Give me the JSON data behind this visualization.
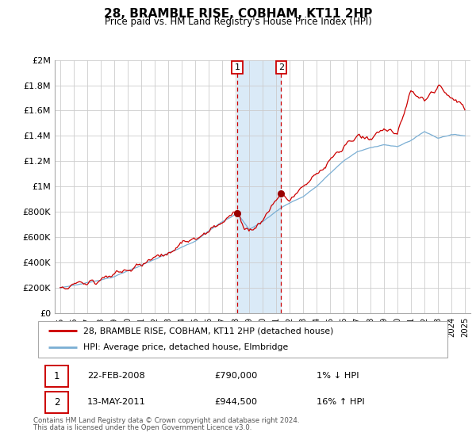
{
  "title": "28, BRAMBLE RISE, COBHAM, KT11 2HP",
  "subtitle": "Price paid vs. HM Land Registry's House Price Index (HPI)",
  "ylim": [
    0,
    2000000
  ],
  "yticks": [
    0,
    200000,
    400000,
    600000,
    800000,
    1000000,
    1200000,
    1400000,
    1600000,
    1800000,
    2000000
  ],
  "ytick_labels": [
    "£0",
    "£200K",
    "£400K",
    "£600K",
    "£800K",
    "£1M",
    "£1.2M",
    "£1.4M",
    "£1.6M",
    "£1.8M",
    "£2M"
  ],
  "line1_color": "#cc0000",
  "line2_color": "#7bafd4",
  "marker_color": "#990000",
  "transaction1_date": 2008.12,
  "transaction1_price": 790000,
  "transaction2_date": 2011.37,
  "transaction2_price": 944500,
  "shading_color": "#daeaf7",
  "dashed_line_color": "#cc0000",
  "legend_label1": "28, BRAMBLE RISE, COBHAM, KT11 2HP (detached house)",
  "legend_label2": "HPI: Average price, detached house, Elmbridge",
  "table_row1_date": "22-FEB-2008",
  "table_row1_price": "£790,000",
  "table_row1_hpi": "1% ↓ HPI",
  "table_row2_date": "13-MAY-2011",
  "table_row2_price": "£944,500",
  "table_row2_hpi": "16% ↑ HPI",
  "footnote1": "Contains HM Land Registry data © Crown copyright and database right 2024.",
  "footnote2": "This data is licensed under the Open Government Licence v3.0.",
  "background_color": "#ffffff",
  "grid_color": "#cccccc"
}
